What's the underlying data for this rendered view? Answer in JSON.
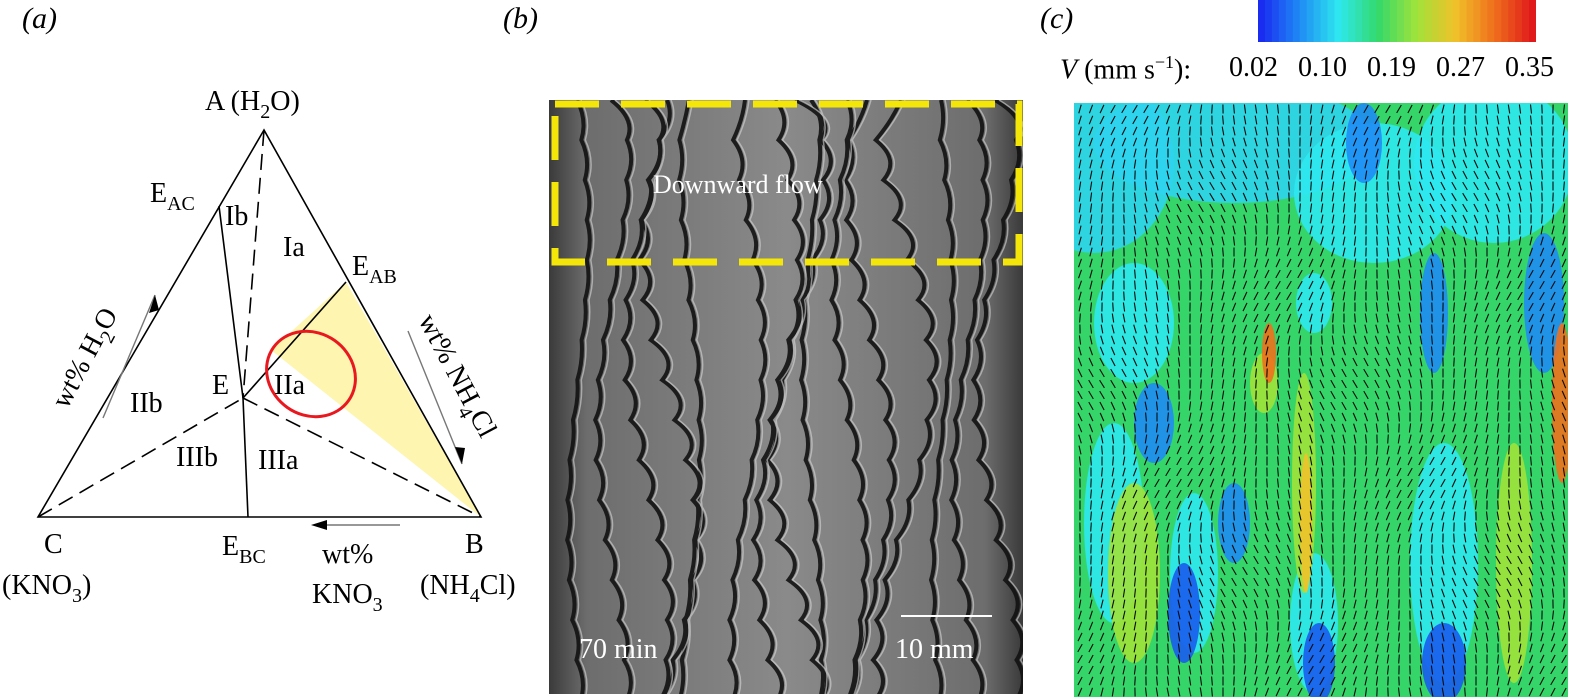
{
  "panels": {
    "a": {
      "label": "(a)",
      "vertex_A": "A (H",
      "vertex_A_sub": "2",
      "vertex_A_tail": "O)",
      "vertex_B": "B",
      "vertex_B_compound": "(NH",
      "vertex_B_sub": "4",
      "vertex_B_tail": "Cl)",
      "vertex_C": "C",
      "vertex_C_compound": "(KNO",
      "vertex_C_sub": "3",
      "vertex_C_tail": ")",
      "eutectic_AC": "E",
      "eutectic_AC_sub": "AC",
      "eutectic_AB": "E",
      "eutectic_AB_sub": "AB",
      "eutectic_BC": "E",
      "eutectic_BC_sub": "BC",
      "eutectic_E": "E",
      "regions": [
        "Ia",
        "Ib",
        "IIa",
        "IIb",
        "IIIa",
        "IIIb"
      ],
      "axis_left": "wt% H",
      "axis_left_sub": "2",
      "axis_left_tail": "O",
      "axis_right": "wt% NH",
      "axis_right_sub": "4",
      "axis_right_tail": "Cl",
      "axis_bottom_line1": "wt%",
      "axis_bottom_line2": "KNO",
      "axis_bottom_sub": "3",
      "highlight_color": "#fdf5b0",
      "circle_color": "#e8181e"
    },
    "b": {
      "label": "(b)",
      "annotation": "Downward flow",
      "time": "70 min",
      "scale": "10 mm",
      "box_color": "#f5e60a"
    },
    "c": {
      "label": "(c)",
      "colorbar_label": "V",
      "colorbar_units": " (mm s",
      "colorbar_units_sup": "−1",
      "colorbar_units_tail": "):",
      "ticks": [
        "0.02",
        "0.10",
        "0.19",
        "0.27",
        "0.35"
      ],
      "colors": [
        "#1a2cf0",
        "#1f8cf5",
        "#2ee8ef",
        "#33d96c",
        "#a0e23a",
        "#f0c22a",
        "#f0701d",
        "#e01a1a"
      ]
    }
  }
}
